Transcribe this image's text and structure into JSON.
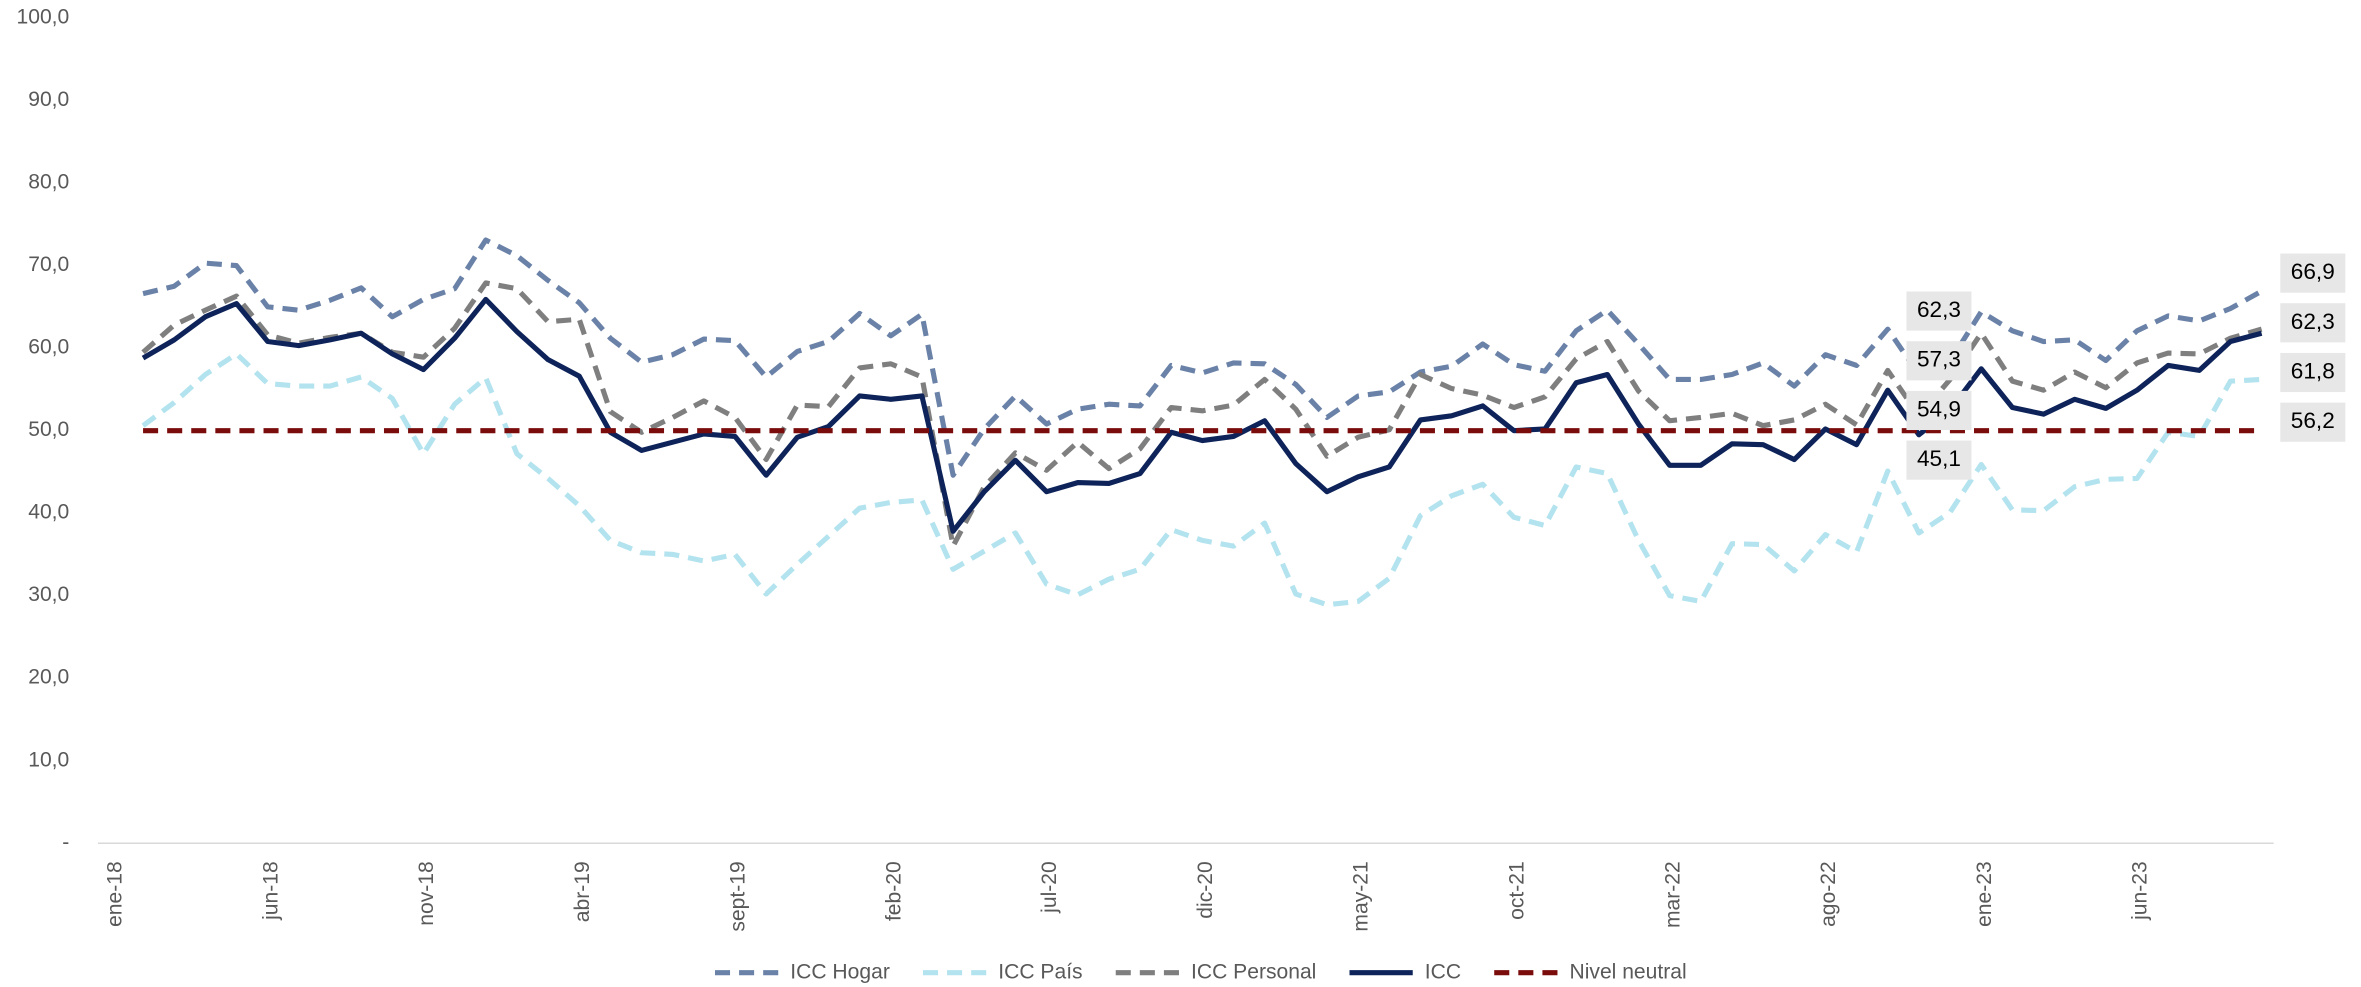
{
  "chart_data": {
    "type": "line",
    "categories": [
      "ene-18",
      null,
      null,
      null,
      null,
      "jun-18",
      null,
      null,
      null,
      null,
      "nov-18",
      null,
      null,
      null,
      null,
      "abr-19",
      null,
      null,
      null,
      null,
      "sept-19",
      null,
      null,
      null,
      null,
      "feb-20",
      null,
      null,
      null,
      null,
      "jul-20",
      null,
      null,
      null,
      null,
      "dic-20",
      null,
      null,
      null,
      null,
      "may-21",
      null,
      null,
      null,
      null,
      "oct-21",
      null,
      null,
      null,
      null,
      "mar-22",
      null,
      null,
      null,
      null,
      "ago-22",
      null,
      null,
      null,
      null,
      "ene-23",
      null,
      null,
      null,
      null,
      "jun-23",
      null,
      null,
      null
    ],
    "ylim": [
      0,
      100
    ],
    "yticks": [
      {
        "value": 0,
        "label": "-"
      },
      {
        "value": 10,
        "label": "10,0"
      },
      {
        "value": 20,
        "label": "20,0"
      },
      {
        "value": 30,
        "label": "30,0"
      },
      {
        "value": 40,
        "label": "40,0"
      },
      {
        "value": 50,
        "label": "50,0"
      },
      {
        "value": 60,
        "label": "60,0"
      },
      {
        "value": 70,
        "label": "70,0"
      },
      {
        "value": 80,
        "label": "80,0"
      },
      {
        "value": 90,
        "label": "90,0"
      },
      {
        "value": 100,
        "label": "100,0"
      }
    ],
    "grid": false,
    "legend": "bottom",
    "series": [
      {
        "name": "ICC Hogar",
        "color": "#6b82a8",
        "dashed": true,
        "values": [
          66.6,
          67.5,
          70.3,
          70,
          65,
          64.6,
          65.8,
          67.3,
          63.8,
          65.9,
          67.2,
          73.1,
          71.2,
          68.2,
          65.5,
          61.2,
          58.3,
          59.2,
          61.1,
          60.9,
          56.5,
          59.6,
          60.8,
          64.2,
          61.5,
          64.1,
          44.6,
          50.2,
          54.2,
          50.8,
          52.6,
          53.2,
          53,
          57.9,
          57,
          58.2,
          58.1,
          55.6,
          51.6,
          54.2,
          54.7,
          57.1,
          57.8,
          60.5,
          58,
          57.2,
          62.1,
          64.6,
          60.5,
          56.2,
          56.2,
          56.8,
          58.2,
          55.4,
          59.2,
          57.9,
          62.3,
          56.8,
          58.4,
          64.4,
          62.1,
          60.8,
          61,
          58.5,
          62.1,
          63.9,
          63.3,
          64.8,
          66.9
        ],
        "value_labels": [
          null,
          null,
          null,
          null,
          null,
          null,
          null,
          null,
          null,
          null,
          null,
          null,
          null,
          null,
          null,
          null,
          null,
          null,
          null,
          null,
          null,
          null,
          null,
          null,
          null,
          null,
          null,
          null,
          null,
          null,
          null,
          null,
          null,
          null,
          null,
          null,
          null,
          null,
          null,
          null,
          null,
          null,
          null,
          null,
          null,
          null,
          null,
          null,
          null,
          null,
          null,
          null,
          null,
          null,
          null,
          null,
          "62,3",
          null,
          null,
          null,
          null,
          null,
          null,
          null,
          null,
          null,
          null,
          null,
          "66,9"
        ]
      },
      {
        "name": "ICC País",
        "color": "#b3e3ee",
        "dashed": true,
        "values": [
          50.6,
          53.4,
          56.8,
          59.3,
          55.7,
          55.4,
          55.4,
          56.5,
          53.9,
          47.2,
          53.2,
          56.4,
          47.2,
          44.2,
          40.9,
          36.7,
          35.2,
          35,
          34.2,
          35,
          30.2,
          33.8,
          37.2,
          40.6,
          41.3,
          41.6,
          33.2,
          35.4,
          37.6,
          31.4,
          30.1,
          32,
          33.2,
          38,
          36.7,
          36,
          38.8,
          30.2,
          28.9,
          29.3,
          32.1,
          39.7,
          42.1,
          43.5,
          39.5,
          38.5,
          45.6,
          44.8,
          36.7,
          30,
          29.3,
          36.3,
          36.2,
          33,
          37.4,
          35.3,
          45.1,
          37.6,
          40.1,
          45.9,
          40.4,
          40.3,
          43.2,
          44.1,
          44.2,
          49.8,
          49.3,
          56,
          56.2
        ],
        "value_labels": [
          null,
          null,
          null,
          null,
          null,
          null,
          null,
          null,
          null,
          null,
          null,
          null,
          null,
          null,
          null,
          null,
          null,
          null,
          null,
          null,
          null,
          null,
          null,
          null,
          null,
          null,
          null,
          null,
          null,
          null,
          null,
          null,
          null,
          null,
          null,
          null,
          null,
          null,
          null,
          null,
          null,
          null,
          null,
          null,
          null,
          null,
          null,
          null,
          null,
          null,
          null,
          null,
          null,
          null,
          null,
          null,
          "45,1",
          null,
          null,
          null,
          null,
          null,
          null,
          null,
          null,
          null,
          null,
          null,
          "56,2"
        ]
      },
      {
        "name": "ICC Personal",
        "color": "#7f7f7f",
        "dashed": true,
        "values": [
          59.5,
          62.8,
          64.6,
          66.3,
          61.6,
          60.6,
          61.3,
          61.8,
          59.5,
          58.9,
          62.4,
          67.9,
          67.2,
          63.2,
          63.5,
          52.3,
          49.8,
          51.6,
          53.6,
          51.6,
          46.5,
          53.1,
          52.9,
          57.6,
          58.1,
          56.5,
          36,
          43.2,
          47.3,
          45.2,
          48.6,
          45.4,
          47.8,
          52.8,
          52.4,
          53.1,
          56.2,
          52.6,
          46.9,
          49.2,
          50.1,
          56.8,
          55.1,
          54.3,
          52.8,
          54.1,
          58.7,
          60.8,
          54.8,
          51.2,
          51.6,
          52.1,
          50.6,
          51.3,
          53.2,
          50.7,
          57.3,
          51.8,
          56.2,
          61.8,
          56,
          54.9,
          57.1,
          55.2,
          58.2,
          59.4,
          59.3,
          61.2,
          62.3
        ],
        "value_labels": [
          null,
          null,
          null,
          null,
          null,
          null,
          null,
          null,
          null,
          null,
          null,
          null,
          null,
          null,
          null,
          null,
          null,
          null,
          null,
          null,
          null,
          null,
          null,
          null,
          null,
          null,
          null,
          null,
          null,
          null,
          null,
          null,
          null,
          null,
          null,
          null,
          null,
          null,
          null,
          null,
          null,
          null,
          null,
          null,
          null,
          null,
          null,
          null,
          null,
          null,
          null,
          null,
          null,
          null,
          null,
          null,
          "57,3",
          null,
          null,
          null,
          null,
          null,
          null,
          null,
          null,
          null,
          null,
          null,
          "62,3"
        ]
      },
      {
        "name": "ICC",
        "color": "#0d2359",
        "dashed": false,
        "values": [
          58.8,
          61,
          63.8,
          65.4,
          60.8,
          60.3,
          61,
          61.8,
          59.3,
          57.4,
          61.2,
          65.9,
          62,
          58.6,
          56.6,
          49.8,
          47.6,
          48.6,
          49.6,
          49.3,
          44.6,
          49.2,
          50.5,
          54.2,
          53.8,
          54.2,
          37.8,
          42.6,
          46.4,
          42.6,
          43.7,
          43.6,
          44.8,
          49.8,
          48.8,
          49.3,
          51.2,
          46,
          42.6,
          44.4,
          45.6,
          51.3,
          51.8,
          53,
          50,
          50.2,
          55.8,
          56.8,
          50.8,
          45.8,
          45.8,
          48.4,
          48.3,
          46.5,
          50.2,
          48.3,
          54.9,
          49.5,
          52.5,
          57.5,
          52.8,
          52,
          53.8,
          52.7,
          54.9,
          57.9,
          57.3,
          60.8,
          61.8
        ],
        "value_labels": [
          null,
          null,
          null,
          null,
          null,
          null,
          null,
          null,
          null,
          null,
          null,
          null,
          null,
          null,
          null,
          null,
          null,
          null,
          null,
          null,
          null,
          null,
          null,
          null,
          null,
          null,
          null,
          null,
          null,
          null,
          null,
          null,
          null,
          null,
          null,
          null,
          null,
          null,
          null,
          null,
          null,
          null,
          null,
          null,
          null,
          null,
          null,
          null,
          null,
          null,
          null,
          null,
          null,
          null,
          null,
          null,
          "54,9",
          null,
          null,
          null,
          null,
          null,
          null,
          null,
          null,
          null,
          null,
          null,
          "61,8"
        ]
      },
      {
        "name": "Nivel neutral",
        "color": "#7a0c0c",
        "dashed": true,
        "values": [
          50,
          50,
          50,
          50,
          50,
          50,
          50,
          50,
          50,
          50,
          50,
          50,
          50,
          50,
          50,
          50,
          50,
          50,
          50,
          50,
          50,
          50,
          50,
          50,
          50,
          50,
          50,
          50,
          50,
          50,
          50,
          50,
          50,
          50,
          50,
          50,
          50,
          50,
          50,
          50,
          50,
          50,
          50,
          50,
          50,
          50,
          50,
          50,
          50,
          50,
          50,
          50,
          50,
          50,
          50,
          50,
          50,
          50,
          50,
          50,
          50,
          50,
          50,
          50,
          50,
          50,
          50,
          50,
          50
        ]
      }
    ]
  }
}
